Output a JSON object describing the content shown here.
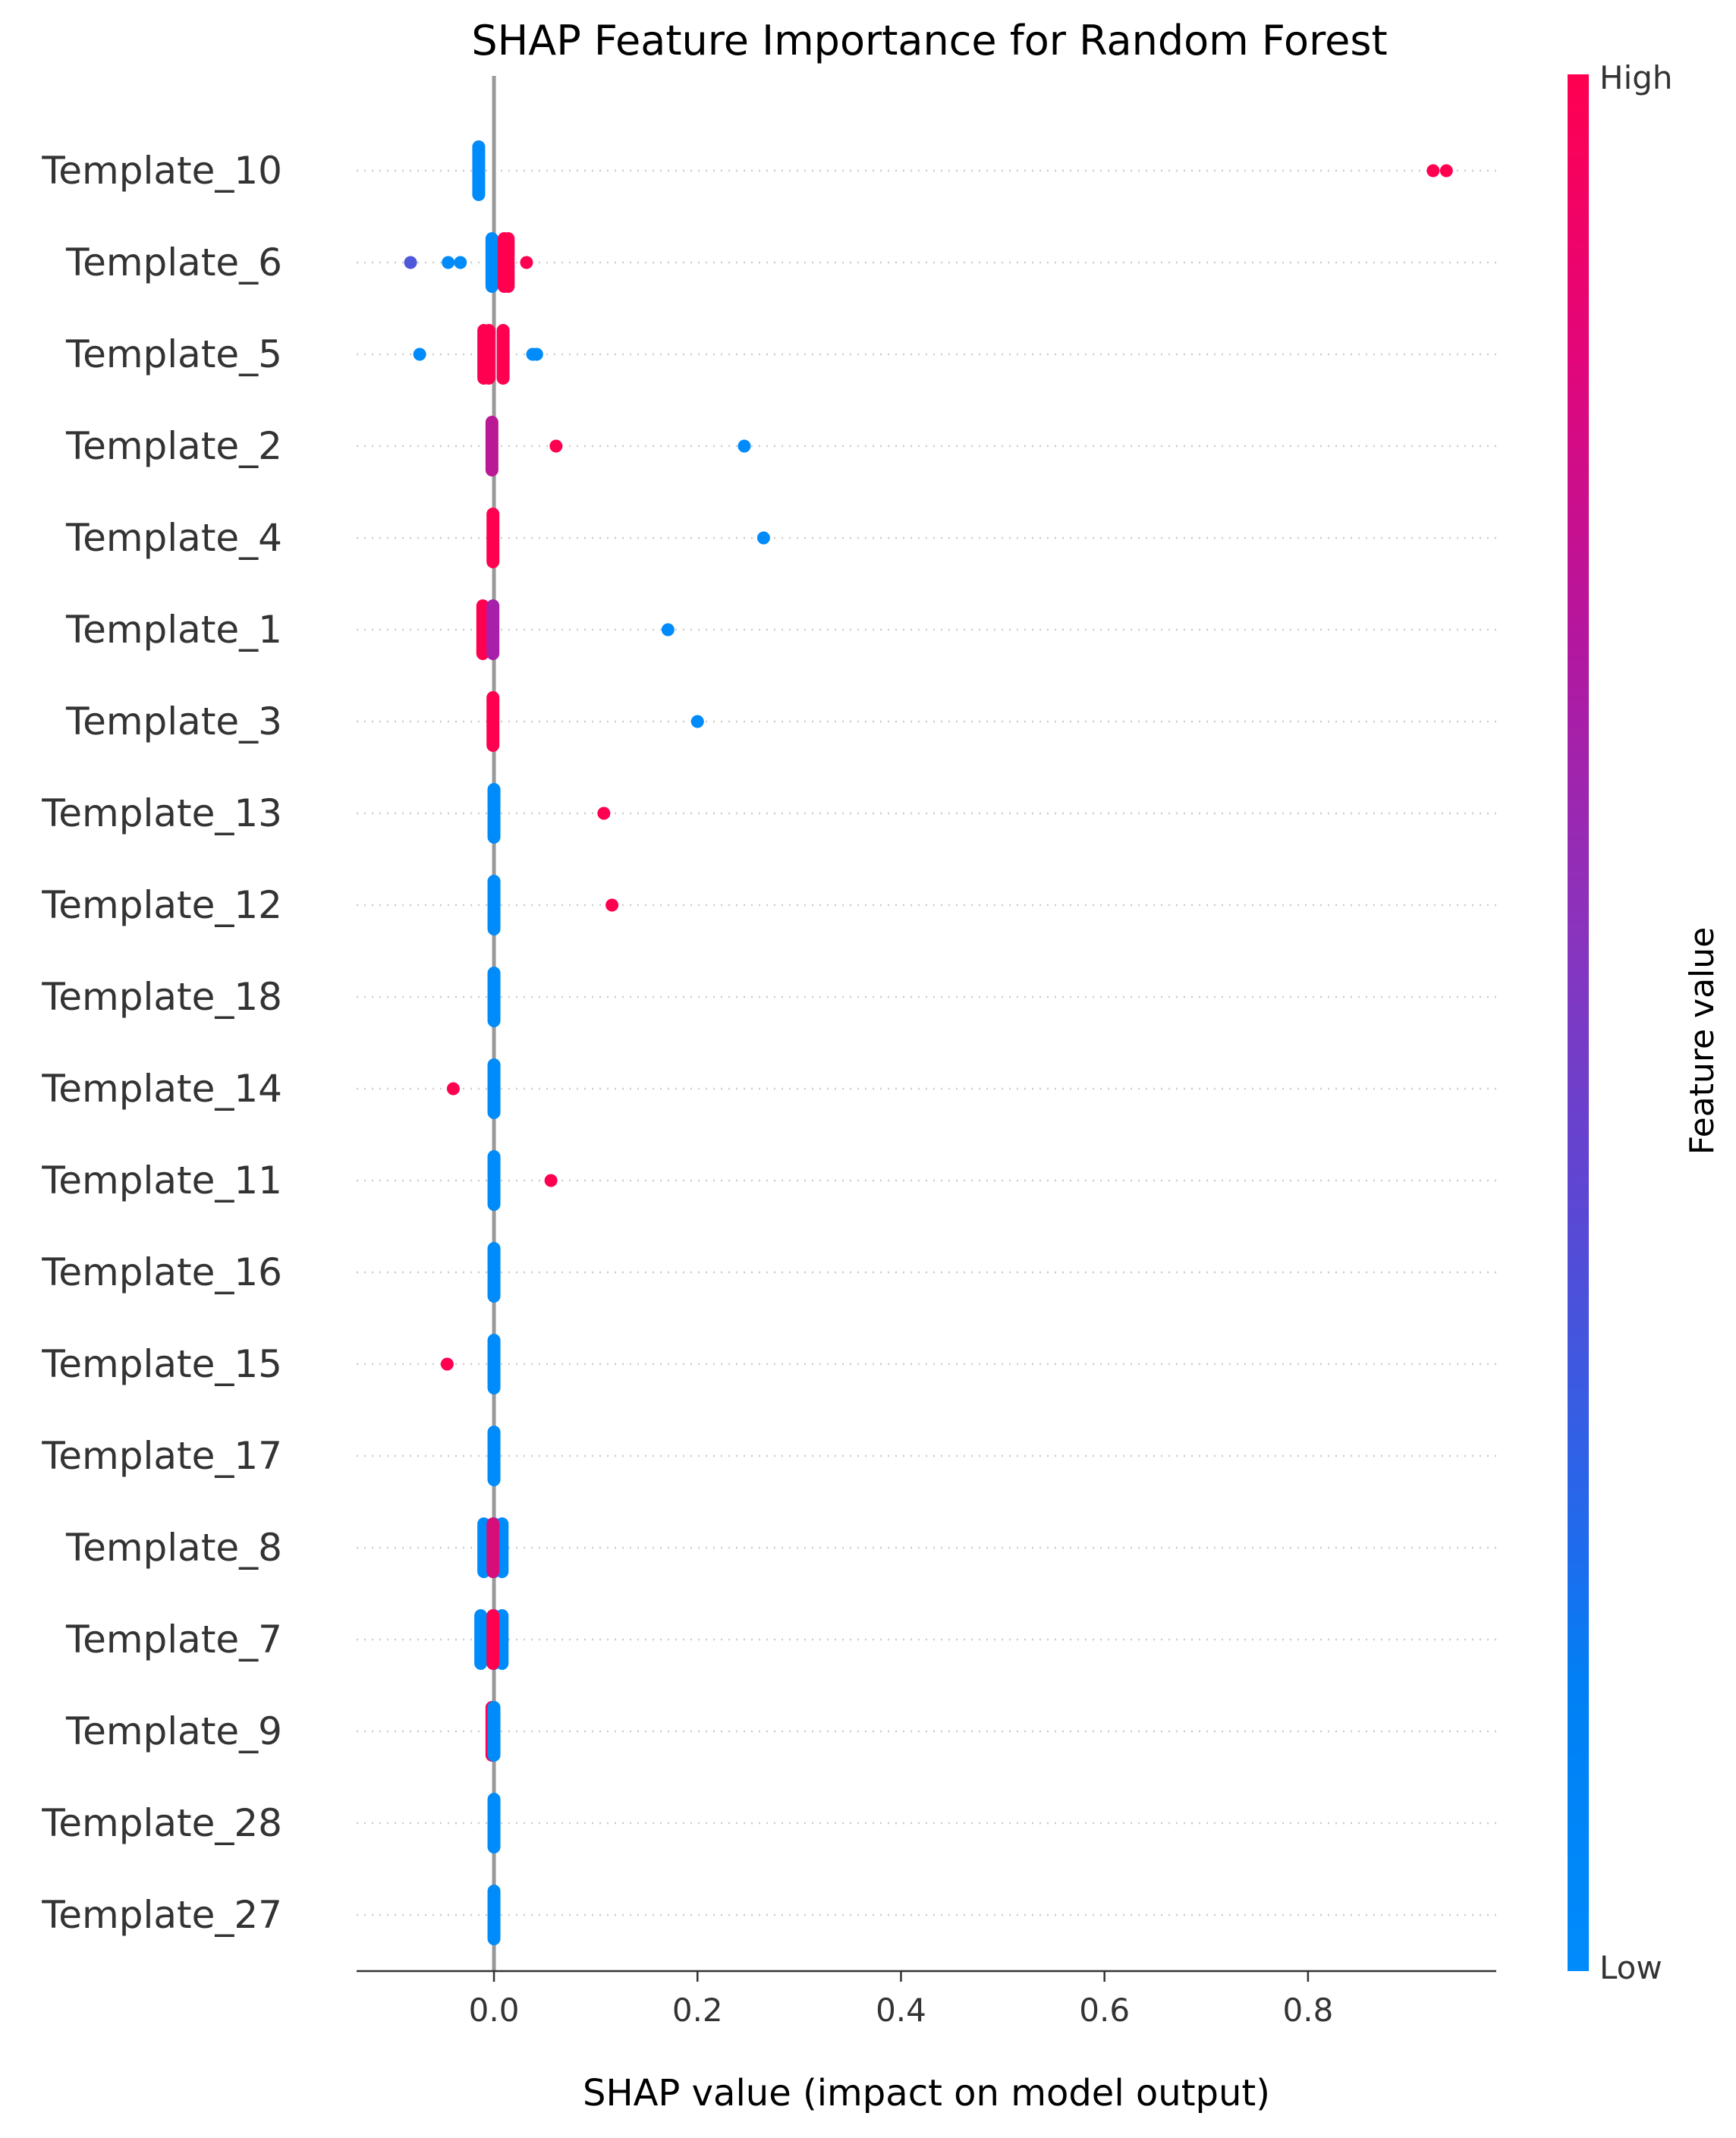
{
  "chart_data": {
    "type": "scatter",
    "title": "SHAP Feature Importance for Random Forest",
    "xlabel": "SHAP value (impact on model output)",
    "ylabel": "",
    "xlim": [
      -0.135,
      0.985
    ],
    "xticks": [
      "0.0",
      "0.2",
      "0.4",
      "0.6",
      "0.8"
    ],
    "xtick_values": [
      0.0,
      0.2,
      0.4,
      0.6,
      0.8
    ],
    "grid": false,
    "colorbar": {
      "title": "Feature value",
      "high_label": "High",
      "low_label": "Low",
      "low_color": "#008bfb",
      "high_color": "#ff0051"
    },
    "features": [
      {
        "name": "Template_10",
        "points": [
          [
            -0.015,
            0.0
          ],
          [
            0.923,
            1.0
          ],
          [
            0.936,
            1.0
          ]
        ]
      },
      {
        "name": "Template_6",
        "points": [
          [
            -0.082,
            0.25
          ],
          [
            -0.045,
            0.0
          ],
          [
            -0.033,
            0.0
          ],
          [
            -0.002,
            0.0
          ],
          [
            0.01,
            1.0
          ],
          [
            0.014,
            1.0
          ],
          [
            0.032,
            1.0
          ]
        ]
      },
      {
        "name": "Template_5",
        "points": [
          [
            -0.073,
            0.0
          ],
          [
            -0.01,
            1.0
          ],
          [
            -0.005,
            1.0
          ],
          [
            0.009,
            1.0
          ],
          [
            0.038,
            0.0
          ],
          [
            0.042,
            0.0
          ]
        ]
      },
      {
        "name": "Template_2",
        "points": [
          [
            -0.002,
            0.65
          ],
          [
            0.061,
            1.0
          ],
          [
            0.246,
            0.0
          ]
        ]
      },
      {
        "name": "Template_4",
        "points": [
          [
            -0.001,
            1.0
          ],
          [
            0.265,
            0.0
          ]
        ]
      },
      {
        "name": "Template_1",
        "points": [
          [
            -0.011,
            1.0
          ],
          [
            -0.001,
            0.55
          ],
          [
            0.171,
            0.0
          ]
        ]
      },
      {
        "name": "Template_3",
        "points": [
          [
            -0.001,
            1.0
          ],
          [
            0.2,
            0.0
          ]
        ]
      },
      {
        "name": "Template_13",
        "points": [
          [
            0.0,
            0.0
          ],
          [
            0.108,
            1.0
          ]
        ]
      },
      {
        "name": "Template_12",
        "points": [
          [
            0.0,
            0.0
          ],
          [
            0.116,
            1.0
          ]
        ]
      },
      {
        "name": "Template_18",
        "points": [
          [
            0.0,
            0.0
          ]
        ]
      },
      {
        "name": "Template_14",
        "points": [
          [
            -0.04,
            1.0
          ],
          [
            0.0,
            0.0
          ]
        ]
      },
      {
        "name": "Template_11",
        "points": [
          [
            0.0,
            0.0
          ],
          [
            0.056,
            1.0
          ]
        ]
      },
      {
        "name": "Template_16",
        "points": [
          [
            0.0,
            0.0
          ]
        ]
      },
      {
        "name": "Template_15",
        "points": [
          [
            -0.046,
            1.0
          ],
          [
            0.0,
            0.0
          ]
        ]
      },
      {
        "name": "Template_17",
        "points": [
          [
            0.0,
            0.0
          ]
        ]
      },
      {
        "name": "Template_8",
        "points": [
          [
            -0.01,
            0.0
          ],
          [
            0.0,
            0.0
          ],
          [
            0.008,
            0.0
          ],
          [
            -0.001,
            0.8
          ]
        ]
      },
      {
        "name": "Template_7",
        "points": [
          [
            -0.013,
            0.0
          ],
          [
            0.0,
            0.0
          ],
          [
            0.008,
            0.0
          ],
          [
            -0.001,
            1.0
          ]
        ]
      },
      {
        "name": "Template_9",
        "points": [
          [
            -0.002,
            1.0
          ],
          [
            0.0,
            0.0
          ]
        ]
      },
      {
        "name": "Template_28",
        "points": [
          [
            0.0,
            0.0
          ]
        ]
      },
      {
        "name": "Template_27",
        "points": [
          [
            0.0,
            0.0
          ]
        ]
      }
    ]
  }
}
